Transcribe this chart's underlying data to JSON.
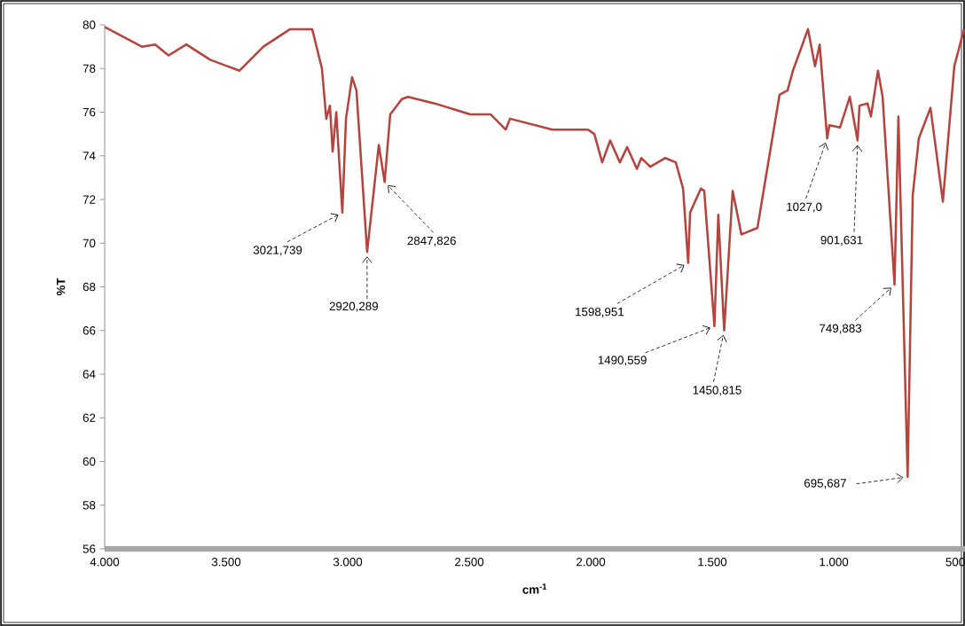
{
  "chart_data": {
    "type": "line",
    "xlabel": "cm$^{-1}$",
    "ylabel": "%T",
    "xlim": [
      4000,
      460
    ],
    "ylim": [
      56,
      80
    ],
    "xticks": [
      {
        "value": 4000,
        "label": "4.000"
      },
      {
        "value": 3500,
        "label": "3.500"
      },
      {
        "value": 3000,
        "label": "3.000"
      },
      {
        "value": 2500,
        "label": "2.500"
      },
      {
        "value": 2000,
        "label": "2.000"
      },
      {
        "value": 1500,
        "label": "1.500"
      },
      {
        "value": 1000,
        "label": "1.000"
      },
      {
        "value": 500,
        "label": "500"
      }
    ],
    "yticks": [
      56,
      58,
      60,
      62,
      64,
      66,
      68,
      70,
      72,
      74,
      76,
      78,
      80
    ],
    "grid": false,
    "marker": "none",
    "line_style": "solid",
    "series": [
      {
        "color": "#b5443f",
        "x": [
          4000,
          3847,
          3792,
          3737,
          3664,
          3566,
          3445,
          3347,
          3237,
          3146,
          3106,
          3088,
          3073,
          3062,
          3047,
          3022,
          3007,
          2982,
          2964,
          2920,
          2872,
          2848,
          2825,
          2777,
          2752,
          2642,
          2496,
          2412,
          2350,
          2332,
          2157,
          2011,
          1985,
          1953,
          1920,
          1880,
          1850,
          1810,
          1792,
          1755,
          1693,
          1650,
          1620,
          1599,
          1591,
          1547,
          1533,
          1491,
          1475,
          1451,
          1416,
          1380,
          1314,
          1223,
          1190,
          1168,
          1106,
          1077,
          1058,
          1027,
          1018,
          974,
          934,
          902,
          894,
          861,
          847,
          818,
          799,
          750,
          734,
          696,
          675,
          650,
          602,
          551,
          504,
          464
        ],
        "values": [
          79.9,
          79.0,
          79.1,
          78.6,
          79.1,
          78.4,
          77.9,
          79.0,
          79.8,
          79.8,
          78.0,
          75.7,
          76.3,
          74.2,
          76.0,
          71.4,
          75.7,
          77.6,
          77.0,
          69.6,
          74.5,
          72.8,
          75.9,
          76.6,
          76.7,
          76.4,
          75.9,
          75.9,
          75.2,
          75.7,
          75.2,
          75.2,
          75.0,
          73.7,
          74.7,
          73.7,
          74.4,
          73.4,
          73.9,
          73.5,
          73.9,
          73.7,
          72.5,
          69.1,
          71.4,
          72.5,
          72.4,
          66.2,
          71.3,
          66.0,
          72.4,
          70.4,
          70.7,
          76.8,
          77.0,
          77.9,
          79.8,
          78.1,
          79.1,
          74.8,
          75.4,
          75.3,
          76.7,
          74.7,
          76.3,
          76.4,
          75.8,
          77.9,
          76.7,
          68.1,
          75.8,
          59.3,
          72.2,
          74.8,
          76.2,
          71.9,
          78.1,
          79.8
        ]
      }
    ],
    "annotations": [
      {
        "text": "3021,739",
        "x": 3021.739,
        "y": 71.4
      },
      {
        "text": "2920,289",
        "x": 2920.289,
        "y": 69.6
      },
      {
        "text": "2847,826",
        "x": 2847.826,
        "y": 72.8
      },
      {
        "text": "1598,951",
        "x": 1598.951,
        "y": 69.1
      },
      {
        "text": "1490,559",
        "x": 1490.559,
        "y": 66.2
      },
      {
        "text": "1450,815",
        "x": 1450.815,
        "y": 66.0
      },
      {
        "text": "1027,0",
        "x": 1027.0,
        "y": 74.8
      },
      {
        "text": "901,631",
        "x": 901.631,
        "y": 74.7
      },
      {
        "text": "749,883",
        "x": 749.883,
        "y": 68.1
      },
      {
        "text": "695,687",
        "x": 695.687,
        "y": 59.3
      }
    ]
  }
}
